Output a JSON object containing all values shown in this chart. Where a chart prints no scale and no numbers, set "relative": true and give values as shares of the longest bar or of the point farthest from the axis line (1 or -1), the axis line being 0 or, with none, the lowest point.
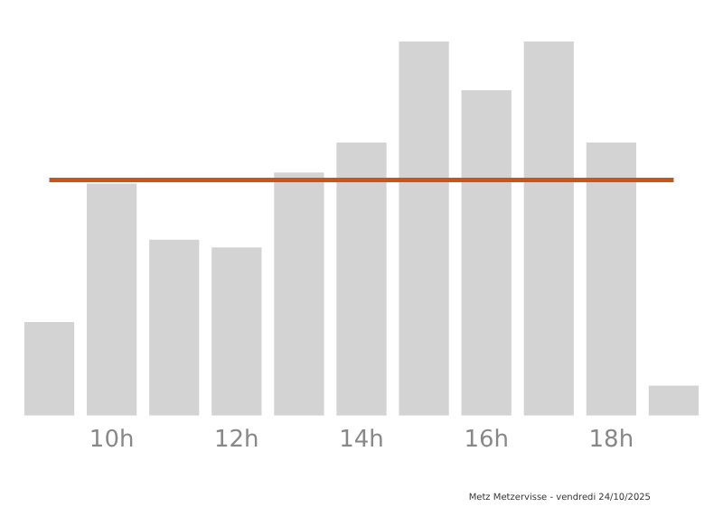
{
  "chart_data": {
    "type": "bar",
    "relative": true,
    "categories": [
      null,
      "10h",
      null,
      "12h",
      null,
      "14h",
      null,
      "16h",
      null,
      "18h",
      null
    ],
    "values": [
      0.25,
      0.62,
      0.47,
      0.45,
      0.65,
      0.73,
      1,
      0.87,
      1,
      0.73,
      0.08
    ],
    "color": "#d3d3d3",
    "ref_lines": [
      {
        "axis": "y",
        "value": 0.63,
        "color": "#c8561c"
      }
    ],
    "annotations": [
      "Metz Metzervisse - vendredi 24/10/2025"
    ],
    "grid": false,
    "legend": false
  }
}
